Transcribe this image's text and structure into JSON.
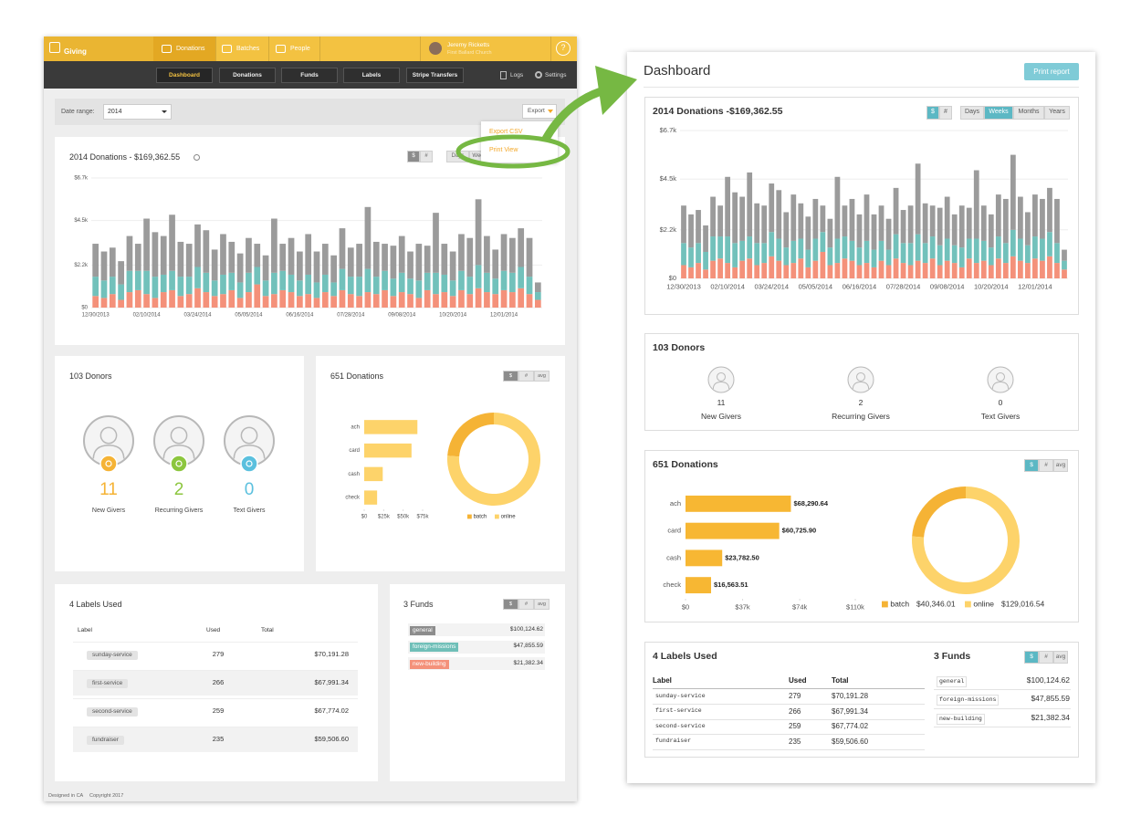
{
  "app": {
    "logo": "Giving",
    "nav": [
      "Donations",
      "Batches",
      "People"
    ],
    "user_name": "Jeremy Ricketts",
    "user_org": "First Ballard Church",
    "help": "?",
    "subnav": [
      "Dashboard",
      "Donations",
      "Funds",
      "Labels",
      "Stripe Transfers"
    ],
    "logs": "Logs",
    "settings": "Settings",
    "date_range_label": "Date range:",
    "date_range": "2014",
    "export": "Export",
    "export_menu": [
      "Export CSV",
      "Print View"
    ],
    "chart_title": "2014 Donations - $169,362.55",
    "footer": "Designed in CA",
    "copyright": "Copyright 2017"
  },
  "print": {
    "title": "Dashboard",
    "button": "Print report"
  },
  "controls": {
    "toggles": [
      "$",
      "#",
      "avg"
    ],
    "periods": [
      "Days",
      "Weeks",
      "Months",
      "Years"
    ]
  },
  "donors": {
    "title": "103 Donors",
    "items": [
      {
        "count": 11,
        "label": "New Givers"
      },
      {
        "count": 2,
        "label": "Recurring Givers"
      },
      {
        "count": 0,
        "label": "Text Givers"
      }
    ]
  },
  "donations_title": "651 Donations",
  "labels": {
    "title": "4 Labels Used",
    "headers": [
      "Label",
      "Used",
      "Total"
    ],
    "rows": [
      [
        "sunday-service",
        279,
        "$70,191.28"
      ],
      [
        "first-service",
        266,
        "$67,991.34"
      ],
      [
        "second-service",
        259,
        "$67,774.02"
      ],
      [
        "fundraiser",
        235,
        "$59,506.60"
      ]
    ]
  },
  "funds": {
    "title": "3 Funds",
    "rows": [
      {
        "name": "general",
        "amount": "$100,124.62",
        "color": "#8c8c8c"
      },
      {
        "name": "foreign-missions",
        "amount": "$47,855.59",
        "color": "#6fbfb8"
      },
      {
        "name": "new-building",
        "amount": "$21,382.34",
        "color": "#f4917a"
      }
    ]
  },
  "chart_data": [
    {
      "type": "bar",
      "stacked": true,
      "title": "2014 Donations -$169,362.55",
      "categories": [
        "12/30/2013",
        null,
        null,
        null,
        null,
        null,
        "02/10/2014",
        null,
        null,
        null,
        null,
        null,
        "03/24/2014",
        null,
        null,
        null,
        null,
        null,
        "05/05/2014",
        null,
        null,
        null,
        null,
        null,
        "06/16/2014",
        null,
        null,
        null,
        null,
        null,
        "07/28/2014",
        null,
        null,
        null,
        null,
        null,
        "09/08/2014",
        null,
        null,
        null,
        null,
        null,
        "10/20/2014",
        null,
        null,
        null,
        null,
        null,
        "12/01/2014",
        null,
        null,
        null,
        null
      ],
      "series": [
        {
          "color": "#f4917a",
          "values": [
            600,
            500,
            700,
            400,
            800,
            900,
            700,
            500,
            800,
            900,
            600,
            700,
            1000,
            800,
            600,
            700,
            900,
            500,
            800,
            1200,
            600,
            700,
            900,
            800,
            600,
            700,
            500,
            800,
            600,
            900,
            700,
            600,
            800,
            700,
            900,
            600,
            800,
            700,
            500,
            900,
            700,
            800,
            600,
            900,
            700,
            1000,
            800,
            700,
            900,
            800,
            1000,
            700,
            400
          ]
        },
        {
          "color": "#72c1bb",
          "values": [
            1000,
            900,
            900,
            800,
            1100,
            1000,
            1200,
            1100,
            900,
            1000,
            1000,
            900,
            1100,
            1000,
            800,
            1000,
            900,
            800,
            1000,
            900,
            800,
            1100,
            1000,
            900,
            800,
            1000,
            800,
            900,
            700,
            1100,
            900,
            1000,
            1200,
            900,
            1000,
            900,
            1000,
            800,
            900,
            900,
            1100,
            900,
            800,
            1000,
            900,
            1200,
            1000,
            800,
            1000,
            1000,
            1100,
            900,
            400
          ]
        },
        {
          "color": "#9b9b9b",
          "values": [
            1700,
            1500,
            1500,
            1200,
            1800,
            1400,
            2700,
            2300,
            2000,
            2900,
            1800,
            1700,
            2200,
            2200,
            1600,
            2100,
            1600,
            1500,
            1800,
            1200,
            1300,
            2800,
            1400,
            1900,
            1500,
            2100,
            1600,
            1600,
            1400,
            2100,
            1500,
            1700,
            3200,
            1800,
            1400,
            1700,
            1900,
            1400,
            1900,
            1400,
            3100,
            1600,
            1500,
            1900,
            2000,
            3400,
            1900,
            1500,
            1900,
            1800,
            2000,
            2000,
            500
          ]
        }
      ],
      "ylim": [
        0,
        6700
      ],
      "yticks": [
        {
          "value": 0,
          "label": "$0"
        },
        {
          "value": 2200,
          "label": "$2.2k"
        },
        {
          "value": 4500,
          "label": "$4.5k"
        },
        {
          "value": 6700,
          "label": "$6.7k"
        }
      ],
      "grid": true
    },
    {
      "type": "hbar",
      "categories": [
        "ach",
        "card",
        "cash",
        "check"
      ],
      "values": [
        68290.64,
        60725.9,
        23782.5,
        16563.51
      ],
      "color": "#fdd36a",
      "xlim": [
        0,
        75000
      ],
      "xticks": [
        {
          "value": 0,
          "label": "$0"
        },
        {
          "value": 25000,
          "label": "$25k"
        },
        {
          "value": 50000,
          "label": "$50k"
        },
        {
          "value": 75000,
          "label": "$75k"
        }
      ]
    },
    {
      "type": "hbar",
      "categories": [
        "ach",
        "card",
        "cash",
        "check"
      ],
      "values": [
        68290.64,
        60725.9,
        23782.5,
        16563.51
      ],
      "value_labels": [
        "$68,290.64",
        "$60,725.90",
        "$23,782.50",
        "$16,563.51"
      ],
      "color": "#f7b733",
      "xlim": [
        0,
        110000
      ],
      "xticks": [
        {
          "value": 0,
          "label": "$0"
        },
        {
          "value": 37000,
          "label": "$37k"
        },
        {
          "value": 74000,
          "label": "$74k"
        },
        {
          "value": 110000,
          "label": "$110k"
        }
      ]
    },
    {
      "type": "pie",
      "donut": true,
      "categories": [
        "batch",
        "online"
      ],
      "values": [
        40346.01,
        129016.54
      ],
      "value_labels": [
        "$40,346.01",
        "$129,016.54"
      ],
      "colors": [
        "#f5b335",
        "#fdd36a"
      ]
    }
  ]
}
